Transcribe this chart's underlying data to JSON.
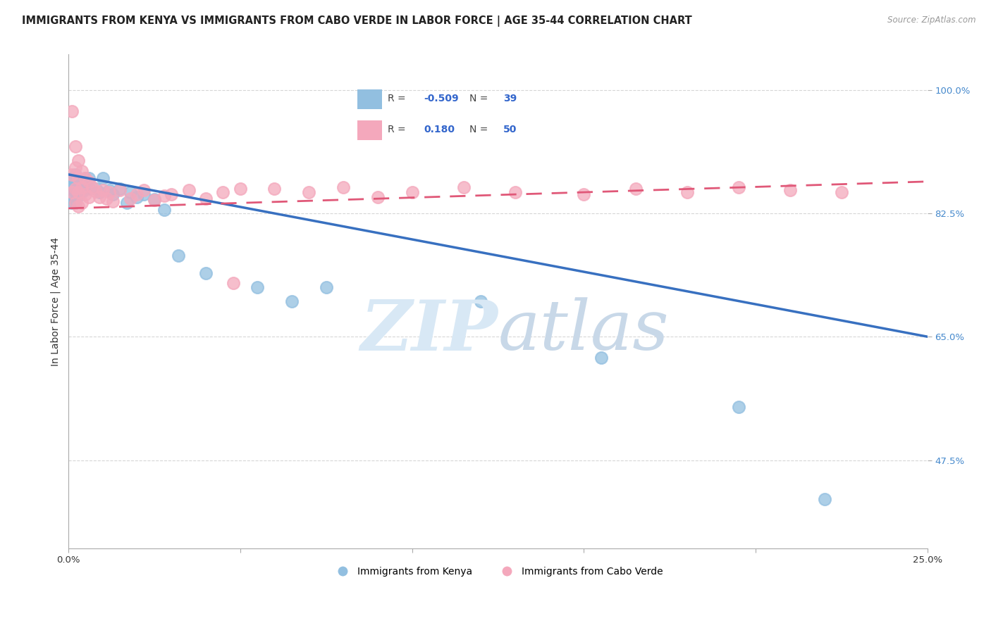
{
  "title": "IMMIGRANTS FROM KENYA VS IMMIGRANTS FROM CABO VERDE IN LABOR FORCE | AGE 35-44 CORRELATION CHART",
  "source": "Source: ZipAtlas.com",
  "ylabel": "In Labor Force | Age 35-44",
  "xlim": [
    0.0,
    0.25
  ],
  "ylim": [
    0.35,
    1.05
  ],
  "yticks": [
    0.475,
    0.65,
    0.825,
    1.0
  ],
  "ytick_labels": [
    "47.5%",
    "65.0%",
    "82.5%",
    "100.0%"
  ],
  "xticks": [
    0.0,
    0.05,
    0.1,
    0.15,
    0.2,
    0.25
  ],
  "xtick_labels": [
    "0.0%",
    "",
    "",
    "",
    "",
    "25.0%"
  ],
  "kenya_R": -0.509,
  "kenya_N": 39,
  "caboverde_R": 0.18,
  "caboverde_N": 50,
  "kenya_color": "#92BFE0",
  "caboverde_color": "#F4A8BC",
  "kenya_line_color": "#3870C0",
  "caboverde_line_color": "#E05878",
  "kenya_line_x0": 0.0,
  "kenya_line_y0": 0.88,
  "kenya_line_x1": 0.25,
  "kenya_line_y1": 0.65,
  "caboverde_line_x0": 0.0,
  "caboverde_line_y0": 0.832,
  "caboverde_line_x1": 0.25,
  "caboverde_line_y1": 0.87,
  "kenya_x": [
    0.001,
    0.001,
    0.001,
    0.001,
    0.001,
    0.002,
    0.002,
    0.002,
    0.002,
    0.003,
    0.003,
    0.003,
    0.004,
    0.004,
    0.005,
    0.005,
    0.006,
    0.006,
    0.008,
    0.009,
    0.01,
    0.012,
    0.013,
    0.015,
    0.017,
    0.018,
    0.02,
    0.022,
    0.025,
    0.028,
    0.032,
    0.04,
    0.055,
    0.065,
    0.075,
    0.12,
    0.155,
    0.195,
    0.22
  ],
  "kenya_y": [
    0.875,
    0.87,
    0.86,
    0.85,
    0.84,
    0.88,
    0.87,
    0.855,
    0.84,
    0.875,
    0.865,
    0.85,
    0.87,
    0.855,
    0.875,
    0.86,
    0.875,
    0.86,
    0.86,
    0.855,
    0.875,
    0.858,
    0.852,
    0.86,
    0.84,
    0.855,
    0.848,
    0.852,
    0.845,
    0.83,
    0.765,
    0.74,
    0.72,
    0.7,
    0.72,
    0.7,
    0.62,
    0.55,
    0.42
  ],
  "caboverde_x": [
    0.001,
    0.001,
    0.001,
    0.002,
    0.002,
    0.002,
    0.002,
    0.003,
    0.003,
    0.003,
    0.003,
    0.004,
    0.004,
    0.004,
    0.005,
    0.005,
    0.006,
    0.006,
    0.007,
    0.008,
    0.009,
    0.01,
    0.011,
    0.012,
    0.013,
    0.015,
    0.018,
    0.02,
    0.022,
    0.025,
    0.028,
    0.03,
    0.035,
    0.04,
    0.045,
    0.05,
    0.06,
    0.07,
    0.08,
    0.09,
    0.1,
    0.115,
    0.13,
    0.15,
    0.165,
    0.18,
    0.195,
    0.21,
    0.225,
    0.048
  ],
  "caboverde_y": [
    0.97,
    0.88,
    0.855,
    0.92,
    0.89,
    0.86,
    0.84,
    0.9,
    0.875,
    0.855,
    0.835,
    0.885,
    0.862,
    0.84,
    0.875,
    0.852,
    0.87,
    0.848,
    0.862,
    0.856,
    0.848,
    0.858,
    0.846,
    0.855,
    0.842,
    0.858,
    0.846,
    0.852,
    0.858,
    0.844,
    0.85,
    0.852,
    0.858,
    0.846,
    0.855,
    0.86,
    0.86,
    0.855,
    0.862,
    0.848,
    0.855,
    0.862,
    0.855,
    0.852,
    0.86,
    0.855,
    0.862,
    0.858,
    0.855,
    0.726
  ],
  "legend_kenya_R": "-0.509",
  "legend_kenya_N": "39",
  "legend_cv_R": "0.180",
  "legend_cv_N": "50",
  "watermark_text": "ZIPatlas",
  "background_color": "#FFFFFF",
  "grid_color": "#CCCCCC",
  "title_fontsize": 10.5,
  "axis_label_fontsize": 10,
  "tick_fontsize": 9.5
}
